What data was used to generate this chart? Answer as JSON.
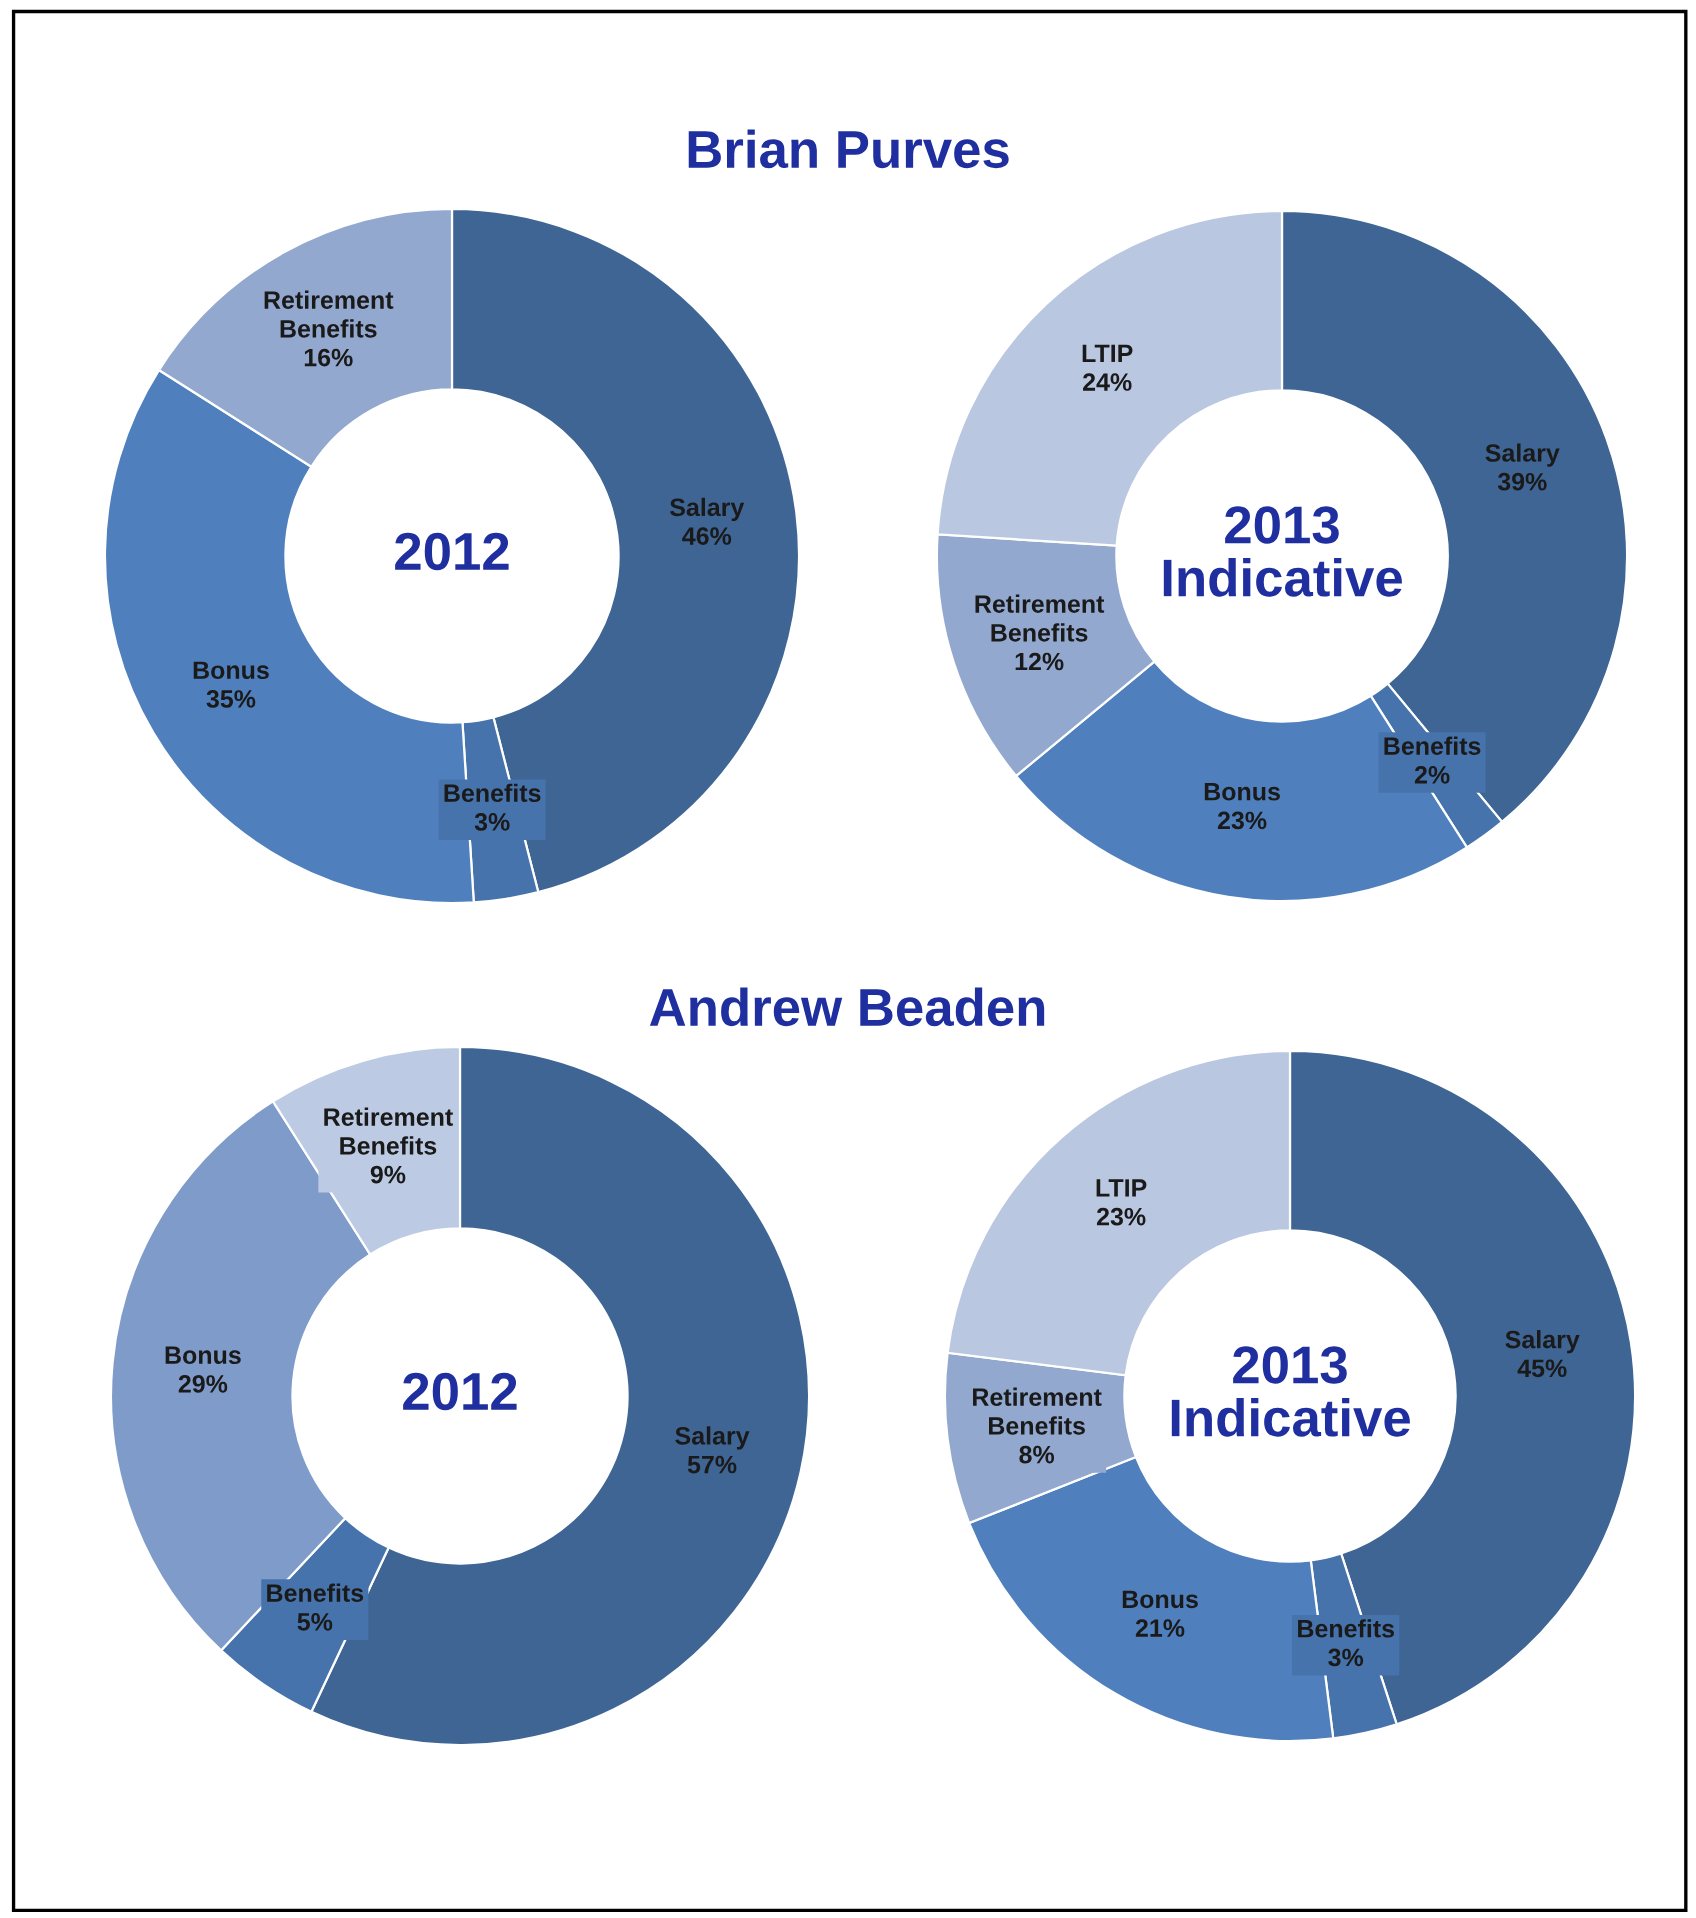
{
  "chart_data": [
    {
      "type": "donut",
      "subtitle": "Brian Purves",
      "title": "2012",
      "categories": [
        "Salary",
        "Benefits",
        "Bonus",
        "Retirement Benefits"
      ],
      "values": [
        46,
        3,
        35,
        16
      ],
      "value_labels": [
        "46%",
        "3%",
        "35%",
        "16%"
      ],
      "colors": [
        "#3e6594",
        "#4673ab",
        "#4f80bd",
        "#92a8cf"
      ]
    },
    {
      "type": "donut",
      "title": "2013 Indicative",
      "categories": [
        "Salary",
        "Benefits",
        "Bonus",
        "Retirement Benefits",
        "LTIP"
      ],
      "values": [
        39,
        2,
        23,
        12,
        24
      ],
      "value_labels": [
        "39%",
        "2%",
        "23%",
        "12%",
        "24%"
      ],
      "colors": [
        "#3e6594",
        "#4673ab",
        "#4f80bd",
        "#92a8cf",
        "#b9c7e0"
      ]
    },
    {
      "type": "donut",
      "subtitle": "Andrew Beaden",
      "title": "2012",
      "categories": [
        "Salary",
        "Benefits",
        "Bonus",
        "Retirement Benefits"
      ],
      "values": [
        57,
        5,
        29,
        9
      ],
      "value_labels": [
        "57%",
        "5%",
        "29%",
        "9%"
      ],
      "colors": [
        "#3e6594",
        "#4673ab",
        "#7f9bca",
        "#bccbe3"
      ]
    },
    {
      "type": "donut",
      "title": "2013 Indicative",
      "categories": [
        "Salary",
        "Benefits",
        "Bonus",
        "Retirement Benefits",
        "LTIP"
      ],
      "values": [
        45,
        3,
        21,
        8,
        23
      ],
      "value_labels": [
        "45%",
        "3%",
        "21%",
        "8%",
        "23%"
      ],
      "colors": [
        "#3e6594",
        "#4673ab",
        "#4f80bd",
        "#92a8cf",
        "#b9c7e0"
      ]
    }
  ]
}
